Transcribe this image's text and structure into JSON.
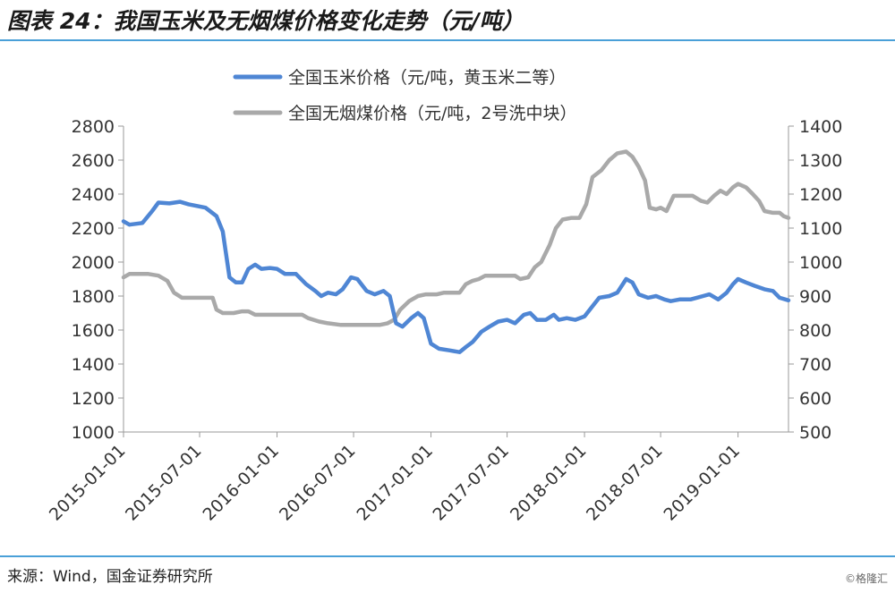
{
  "header": {
    "title": "图表 24：我国玉米及无烟煤价格变化走势（元/吨）"
  },
  "footer": {
    "source": "来源：Wind，国金证券研究所",
    "watermark": "©格隆汇"
  },
  "chart_data": {
    "type": "line",
    "title": "",
    "legend_position": "top",
    "grid": false,
    "x_ticks": [
      "2015-01-01",
      "2015-07-01",
      "2016-01-01",
      "2016-07-01",
      "2017-01-01",
      "2017-07-01",
      "2018-01-01",
      "2018-07-01",
      "2019-01-01"
    ],
    "x_range": [
      "2015-01-01",
      "2019-05-01"
    ],
    "y_left": {
      "range": [
        1000,
        2800
      ],
      "ticks": [
        1000,
        1200,
        1400,
        1600,
        1800,
        2000,
        2200,
        2400,
        2600,
        2800
      ]
    },
    "y_right": {
      "range": [
        500,
        1400
      ],
      "ticks": [
        500,
        600,
        700,
        800,
        900,
        1000,
        1100,
        1200,
        1300,
        1400
      ]
    },
    "series": [
      {
        "name": "全国玉米价格（元/吨，黄玉米二等）",
        "axis": "left",
        "color": "#4f86d4",
        "points": [
          [
            "2015-01-01",
            2240
          ],
          [
            "2015-01-15",
            2220
          ],
          [
            "2015-02-15",
            2230
          ],
          [
            "2015-03-10",
            2300
          ],
          [
            "2015-03-25",
            2350
          ],
          [
            "2015-04-20",
            2345
          ],
          [
            "2015-05-15",
            2355
          ],
          [
            "2015-06-05",
            2340
          ],
          [
            "2015-06-25",
            2330
          ],
          [
            "2015-07-15",
            2320
          ],
          [
            "2015-08-10",
            2270
          ],
          [
            "2015-08-25",
            2180
          ],
          [
            "2015-09-10",
            1910
          ],
          [
            "2015-09-25",
            1880
          ],
          [
            "2015-10-10",
            1880
          ],
          [
            "2015-10-25",
            1960
          ],
          [
            "2015-11-10",
            1985
          ],
          [
            "2015-11-25",
            1960
          ],
          [
            "2015-12-15",
            1965
          ],
          [
            "2016-01-01",
            1960
          ],
          [
            "2016-01-20",
            1930
          ],
          [
            "2016-02-15",
            1930
          ],
          [
            "2016-03-10",
            1870
          ],
          [
            "2016-04-01",
            1830
          ],
          [
            "2016-04-15",
            1800
          ],
          [
            "2016-05-01",
            1820
          ],
          [
            "2016-05-20",
            1810
          ],
          [
            "2016-06-05",
            1840
          ],
          [
            "2016-06-25",
            1910
          ],
          [
            "2016-07-10",
            1900
          ],
          [
            "2016-08-01",
            1830
          ],
          [
            "2016-08-20",
            1810
          ],
          [
            "2016-09-10",
            1830
          ],
          [
            "2016-09-25",
            1800
          ],
          [
            "2016-10-10",
            1640
          ],
          [
            "2016-10-25",
            1620
          ],
          [
            "2016-11-15",
            1670
          ],
          [
            "2016-12-01",
            1700
          ],
          [
            "2016-12-15",
            1670
          ],
          [
            "2017-01-01",
            1520
          ],
          [
            "2017-01-20",
            1490
          ],
          [
            "2017-02-15",
            1480
          ],
          [
            "2017-03-10",
            1470
          ],
          [
            "2017-03-25",
            1500
          ],
          [
            "2017-04-10",
            1530
          ],
          [
            "2017-05-01",
            1590
          ],
          [
            "2017-05-20",
            1620
          ],
          [
            "2017-06-10",
            1650
          ],
          [
            "2017-07-01",
            1660
          ],
          [
            "2017-07-20",
            1640
          ],
          [
            "2017-08-10",
            1690
          ],
          [
            "2017-08-25",
            1700
          ],
          [
            "2017-09-10",
            1660
          ],
          [
            "2017-10-01",
            1660
          ],
          [
            "2017-10-20",
            1690
          ],
          [
            "2017-11-01",
            1660
          ],
          [
            "2017-11-20",
            1670
          ],
          [
            "2017-12-10",
            1660
          ],
          [
            "2018-01-01",
            1680
          ],
          [
            "2018-01-20",
            1740
          ],
          [
            "2018-02-05",
            1790
          ],
          [
            "2018-03-01",
            1800
          ],
          [
            "2018-03-20",
            1820
          ],
          [
            "2018-04-10",
            1900
          ],
          [
            "2018-04-25",
            1880
          ],
          [
            "2018-05-10",
            1810
          ],
          [
            "2018-06-01",
            1790
          ],
          [
            "2018-06-20",
            1800
          ],
          [
            "2018-07-10",
            1780
          ],
          [
            "2018-07-25",
            1770
          ],
          [
            "2018-08-15",
            1780
          ],
          [
            "2018-09-10",
            1780
          ],
          [
            "2018-09-25",
            1790
          ],
          [
            "2018-10-10",
            1800
          ],
          [
            "2018-10-25",
            1810
          ],
          [
            "2018-11-15",
            1780
          ],
          [
            "2018-12-05",
            1820
          ],
          [
            "2018-12-20",
            1870
          ],
          [
            "2019-01-01",
            1900
          ],
          [
            "2019-01-20",
            1880
          ],
          [
            "2019-02-10",
            1860
          ],
          [
            "2019-03-05",
            1840
          ],
          [
            "2019-03-25",
            1830
          ],
          [
            "2019-04-10",
            1790
          ],
          [
            "2019-05-01",
            1775
          ]
        ]
      },
      {
        "name": "全国无烟煤价格（元/吨，2号洗中块）",
        "axis": "right",
        "color": "#a9a9a9",
        "points": [
          [
            "2015-01-01",
            955
          ],
          [
            "2015-01-15",
            965
          ],
          [
            "2015-03-01",
            965
          ],
          [
            "2015-03-25",
            960
          ],
          [
            "2015-04-15",
            945
          ],
          [
            "2015-05-01",
            910
          ],
          [
            "2015-05-20",
            895
          ],
          [
            "2015-06-15",
            895
          ],
          [
            "2015-07-15",
            895
          ],
          [
            "2015-08-01",
            895
          ],
          [
            "2015-08-10",
            860
          ],
          [
            "2015-08-25",
            850
          ],
          [
            "2015-09-20",
            850
          ],
          [
            "2015-10-10",
            855
          ],
          [
            "2015-10-25",
            855
          ],
          [
            "2015-11-10",
            845
          ],
          [
            "2015-12-01",
            845
          ],
          [
            "2016-01-01",
            845
          ],
          [
            "2016-02-01",
            845
          ],
          [
            "2016-03-01",
            845
          ],
          [
            "2016-03-15",
            835
          ],
          [
            "2016-04-10",
            825
          ],
          [
            "2016-05-01",
            820
          ],
          [
            "2016-06-01",
            815
          ],
          [
            "2016-07-01",
            815
          ],
          [
            "2016-08-01",
            815
          ],
          [
            "2016-09-01",
            815
          ],
          [
            "2016-09-20",
            820
          ],
          [
            "2016-10-05",
            830
          ],
          [
            "2016-10-20",
            860
          ],
          [
            "2016-11-10",
            885
          ],
          [
            "2016-12-01",
            900
          ],
          [
            "2016-12-20",
            905
          ],
          [
            "2017-01-15",
            905
          ],
          [
            "2017-02-01",
            910
          ],
          [
            "2017-02-20",
            910
          ],
          [
            "2017-03-10",
            910
          ],
          [
            "2017-03-25",
            935
          ],
          [
            "2017-04-10",
            945
          ],
          [
            "2017-04-25",
            950
          ],
          [
            "2017-05-10",
            960
          ],
          [
            "2017-06-01",
            960
          ],
          [
            "2017-07-01",
            960
          ],
          [
            "2017-07-20",
            960
          ],
          [
            "2017-08-01",
            950
          ],
          [
            "2017-08-20",
            955
          ],
          [
            "2017-09-05",
            985
          ],
          [
            "2017-09-20",
            1000
          ],
          [
            "2017-10-10",
            1050
          ],
          [
            "2017-10-25",
            1100
          ],
          [
            "2017-11-10",
            1125
          ],
          [
            "2017-12-01",
            1130
          ],
          [
            "2017-12-20",
            1130
          ],
          [
            "2018-01-05",
            1170
          ],
          [
            "2018-01-20",
            1250
          ],
          [
            "2018-02-10",
            1270
          ],
          [
            "2018-03-01",
            1300
          ],
          [
            "2018-03-20",
            1320
          ],
          [
            "2018-04-10",
            1325
          ],
          [
            "2018-04-25",
            1310
          ],
          [
            "2018-05-10",
            1280
          ],
          [
            "2018-05-25",
            1240
          ],
          [
            "2018-06-05",
            1160
          ],
          [
            "2018-06-20",
            1155
          ],
          [
            "2018-07-01",
            1160
          ],
          [
            "2018-07-15",
            1150
          ],
          [
            "2018-08-01",
            1195
          ],
          [
            "2018-08-20",
            1195
          ],
          [
            "2018-09-15",
            1195
          ],
          [
            "2018-10-05",
            1180
          ],
          [
            "2018-10-20",
            1175
          ],
          [
            "2018-11-05",
            1195
          ],
          [
            "2018-11-20",
            1210
          ],
          [
            "2018-12-05",
            1200
          ],
          [
            "2018-12-20",
            1220
          ],
          [
            "2019-01-01",
            1230
          ],
          [
            "2019-01-20",
            1220
          ],
          [
            "2019-02-05",
            1200
          ],
          [
            "2019-02-20",
            1180
          ],
          [
            "2019-03-05",
            1150
          ],
          [
            "2019-03-25",
            1145
          ],
          [
            "2019-04-10",
            1145
          ],
          [
            "2019-04-20",
            1135
          ],
          [
            "2019-05-01",
            1130
          ]
        ]
      }
    ]
  }
}
